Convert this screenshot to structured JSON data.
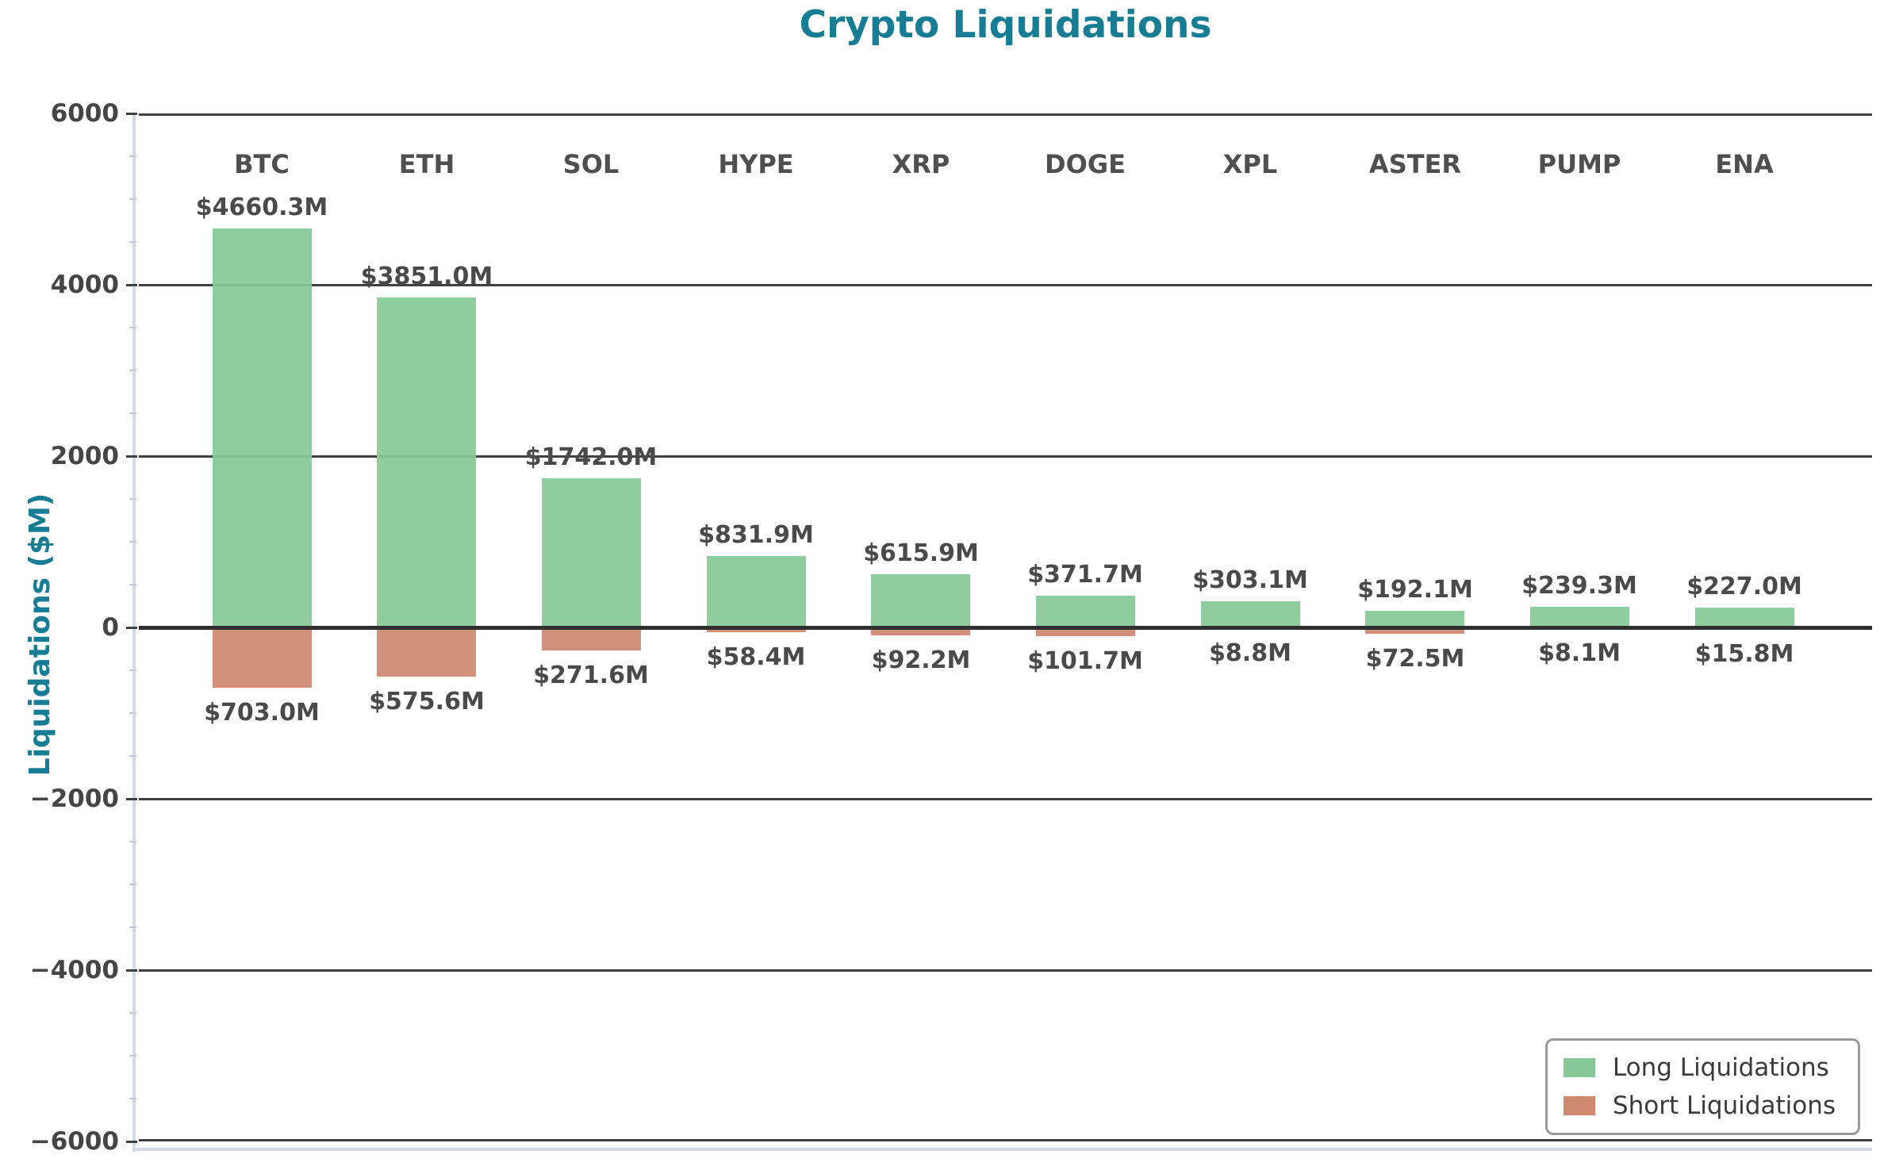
{
  "chart_data": {
    "type": "bar",
    "title": "Crypto Liquidations",
    "ylabel": "Liquidations ($M)",
    "categories": [
      "BTC",
      "ETH",
      "SOL",
      "HYPE",
      "XRP",
      "DOGE",
      "XPL",
      "ASTER",
      "PUMP",
      "ENA"
    ],
    "series": [
      {
        "name": "Long Liquidations",
        "direction": "up",
        "color": "#86c897",
        "values": [
          4660.3,
          3851.0,
          1742.0,
          831.9,
          615.9,
          371.7,
          303.1,
          192.1,
          239.3,
          227.0
        ],
        "labels": [
          "$4660.3M",
          "$3851.0M",
          "$1742.0M",
          "$831.9M",
          "$615.9M",
          "$371.7M",
          "$303.1M",
          "$192.1M",
          "$239.3M",
          "$227.0M"
        ]
      },
      {
        "name": "Short Liquidations",
        "direction": "down",
        "color": "#cf8971",
        "values": [
          703.0,
          575.6,
          271.6,
          58.4,
          92.2,
          101.7,
          8.8,
          72.5,
          8.1,
          15.8
        ],
        "labels": [
          "$703.0M",
          "$575.6M",
          "$271.6M",
          "$58.4M",
          "$92.2M",
          "$101.7M",
          "$8.8M",
          "$72.5M",
          "$8.1M",
          "$15.8M"
        ]
      }
    ],
    "ylim": [
      -6000,
      6000
    ],
    "ytick_values": [
      6000,
      4000,
      2000,
      0,
      -2000,
      -4000,
      -6000
    ],
    "ytick_labels": [
      "6000",
      "4000",
      "2000",
      "0",
      "−2000",
      "−4000",
      "−6000"
    ],
    "minor_tick_step": 500,
    "grid": "horizontal",
    "legend_position": "lower right",
    "colors": {
      "title": "#177d94",
      "grid": "#404040",
      "zero_line": "#2f2f2f",
      "tick_label": "#454545",
      "bar_label": "#4a4a4a",
      "category_label": "#4f4f4f",
      "spine": "#d4dae6",
      "legend_border": "#9a9a9a",
      "legend_text": "#3a3a3a"
    }
  }
}
